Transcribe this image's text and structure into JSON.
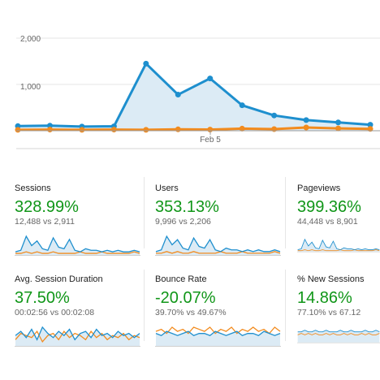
{
  "colors": {
    "current": "#1e8fce",
    "previous": "#f28b1e",
    "positive": "#109618",
    "area": "#dcebf5"
  },
  "chart_data": {
    "type": "line",
    "x_tick_label": "Feb 5",
    "ylim": [
      0,
      2000
    ],
    "yticks": [
      "2,000",
      "1,000"
    ],
    "series": [
      {
        "values": [
          100,
          110,
          90,
          95,
          1450,
          780,
          1130,
          550,
          330,
          230,
          180,
          130
        ]
      },
      {
        "values": [
          20,
          25,
          20,
          25,
          20,
          30,
          25,
          45,
          35,
          70,
          50,
          40
        ]
      }
    ]
  },
  "metrics": [
    {
      "title": "Sessions",
      "value": "328.99%",
      "compare": "12,488 vs 2,911",
      "spark_a": [
        2,
        3,
        12,
        6,
        9,
        4,
        3,
        11,
        5,
        4,
        10,
        3,
        2,
        4,
        3,
        3,
        2,
        3,
        2,
        3,
        2,
        2,
        3,
        2
      ],
      "spark_b": [
        1,
        1,
        2,
        1,
        2,
        1,
        1,
        2,
        1,
        1,
        1,
        1,
        2,
        1,
        1,
        1,
        2,
        1,
        1,
        1,
        1,
        1,
        2,
        1
      ]
    },
    {
      "title": "Users",
      "value": "353.13%",
      "compare": "9,996 vs 2,206",
      "spark_a": [
        2,
        3,
        11,
        6,
        9,
        4,
        3,
        10,
        5,
        4,
        9,
        3,
        2,
        4,
        3,
        3,
        2,
        3,
        2,
        3,
        2,
        2,
        3,
        2
      ],
      "spark_b": [
        1,
        1,
        2,
        1,
        2,
        1,
        1,
        2,
        1,
        1,
        1,
        1,
        2,
        1,
        1,
        1,
        2,
        1,
        1,
        1,
        1,
        1,
        2,
        1
      ]
    },
    {
      "title": "Pageviews",
      "value": "399.36%",
      "compare": "44,448 vs 8,901",
      "spark_a": [
        2,
        3,
        13,
        6,
        10,
        4,
        3,
        12,
        5,
        4,
        11,
        3,
        2,
        4,
        3,
        3,
        2,
        3,
        2,
        3,
        2,
        2,
        3,
        2
      ],
      "spark_b": [
        1,
        1,
        2,
        1,
        2,
        1,
        1,
        2,
        1,
        1,
        1,
        1,
        2,
        1,
        1,
        1,
        2,
        1,
        1,
        1,
        1,
        1,
        2,
        1
      ]
    },
    {
      "title": "Avg. Session Duration",
      "value": "37.50%",
      "compare": "00:02:56 vs 00:02:08",
      "spark_a": [
        5,
        7,
        4,
        8,
        3,
        9,
        6,
        4,
        7,
        5,
        8,
        3,
        6,
        7,
        4,
        8,
        5,
        6,
        4,
        7,
        5,
        6,
        4,
        6
      ],
      "spark_b": [
        3,
        6,
        5,
        4,
        7,
        2,
        5,
        6,
        3,
        7,
        4,
        6,
        5,
        3,
        7,
        4,
        6,
        3,
        5,
        4,
        6,
        3,
        5,
        4
      ]
    },
    {
      "title": "Bounce Rate",
      "value": "-20.07%",
      "compare": "39.70% vs 49.67%",
      "spark_a": [
        6,
        5,
        7,
        6,
        5,
        6,
        7,
        5,
        6,
        6,
        5,
        7,
        6,
        5,
        6,
        7,
        5,
        6,
        6,
        5,
        7,
        6,
        5,
        6
      ],
      "spark_b": [
        7,
        8,
        6,
        9,
        7,
        8,
        6,
        9,
        8,
        7,
        9,
        6,
        8,
        7,
        9,
        6,
        8,
        7,
        9,
        7,
        8,
        6,
        9,
        7
      ]
    },
    {
      "title": "% New Sessions",
      "value": "14.86%",
      "compare": "77.10% vs 67.12",
      "spark_a": [
        7,
        7,
        8,
        7,
        7,
        8,
        7,
        7,
        8,
        7,
        7,
        7,
        8,
        7,
        7,
        8,
        7,
        7,
        7,
        8,
        7,
        7,
        8,
        7
      ],
      "spark_b": [
        5,
        6,
        5,
        6,
        5,
        6,
        5,
        5,
        6,
        5,
        6,
        5,
        5,
        6,
        5,
        6,
        5,
        5,
        6,
        5,
        6,
        5,
        5,
        6
      ]
    }
  ]
}
